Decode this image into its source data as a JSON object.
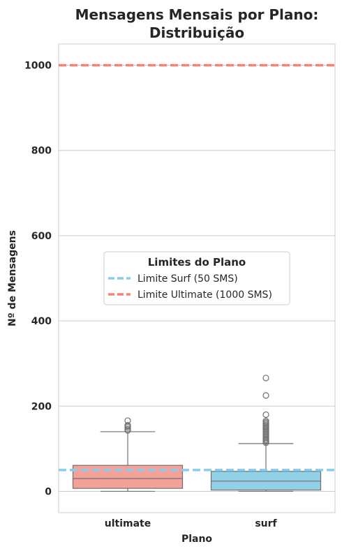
{
  "chart_data": {
    "type": "boxplot",
    "title_lines": [
      "Mensagens Mensais por Plano:",
      "Distribuição"
    ],
    "xlabel": "Plano",
    "ylabel": "Nº de Mensagens",
    "ylim": [
      -50,
      1050
    ],
    "yticks": [
      0,
      200,
      400,
      600,
      800,
      1000
    ],
    "grid": true,
    "categories": [
      "ultimate",
      "surf"
    ],
    "boxes": [
      {
        "category": "ultimate",
        "color": "#f4a19a",
        "q1": 7,
        "median": 30,
        "q3": 61,
        "whisker_low": 0,
        "whisker_high": 140,
        "outliers": [
          143,
          146,
          150,
          153,
          155,
          166
        ]
      },
      {
        "category": "surf",
        "color": "#93cfe6",
        "q1": 3,
        "median": 24,
        "q3": 47,
        "whisker_low": 0,
        "whisker_high": 112,
        "outliers": [
          114,
          117,
          120,
          123,
          126,
          129,
          132,
          135,
          138,
          141,
          144,
          147,
          150,
          153,
          156,
          159,
          162,
          165,
          180,
          225,
          266
        ]
      }
    ],
    "reference_lines": [
      {
        "name": "Limite Surf (50 SMS)",
        "value": 50,
        "color": "#87ceeb",
        "style": "dashed"
      },
      {
        "name": "Limite Ultimate (1000 SMS)",
        "value": 1000,
        "color": "#fa8072",
        "style": "dashed"
      }
    ],
    "legend": {
      "title": "Limites do Plano",
      "placement": "center",
      "entries": [
        "Limite Surf (50 SMS)",
        "Limite Ultimate (1000 SMS)"
      ]
    }
  }
}
